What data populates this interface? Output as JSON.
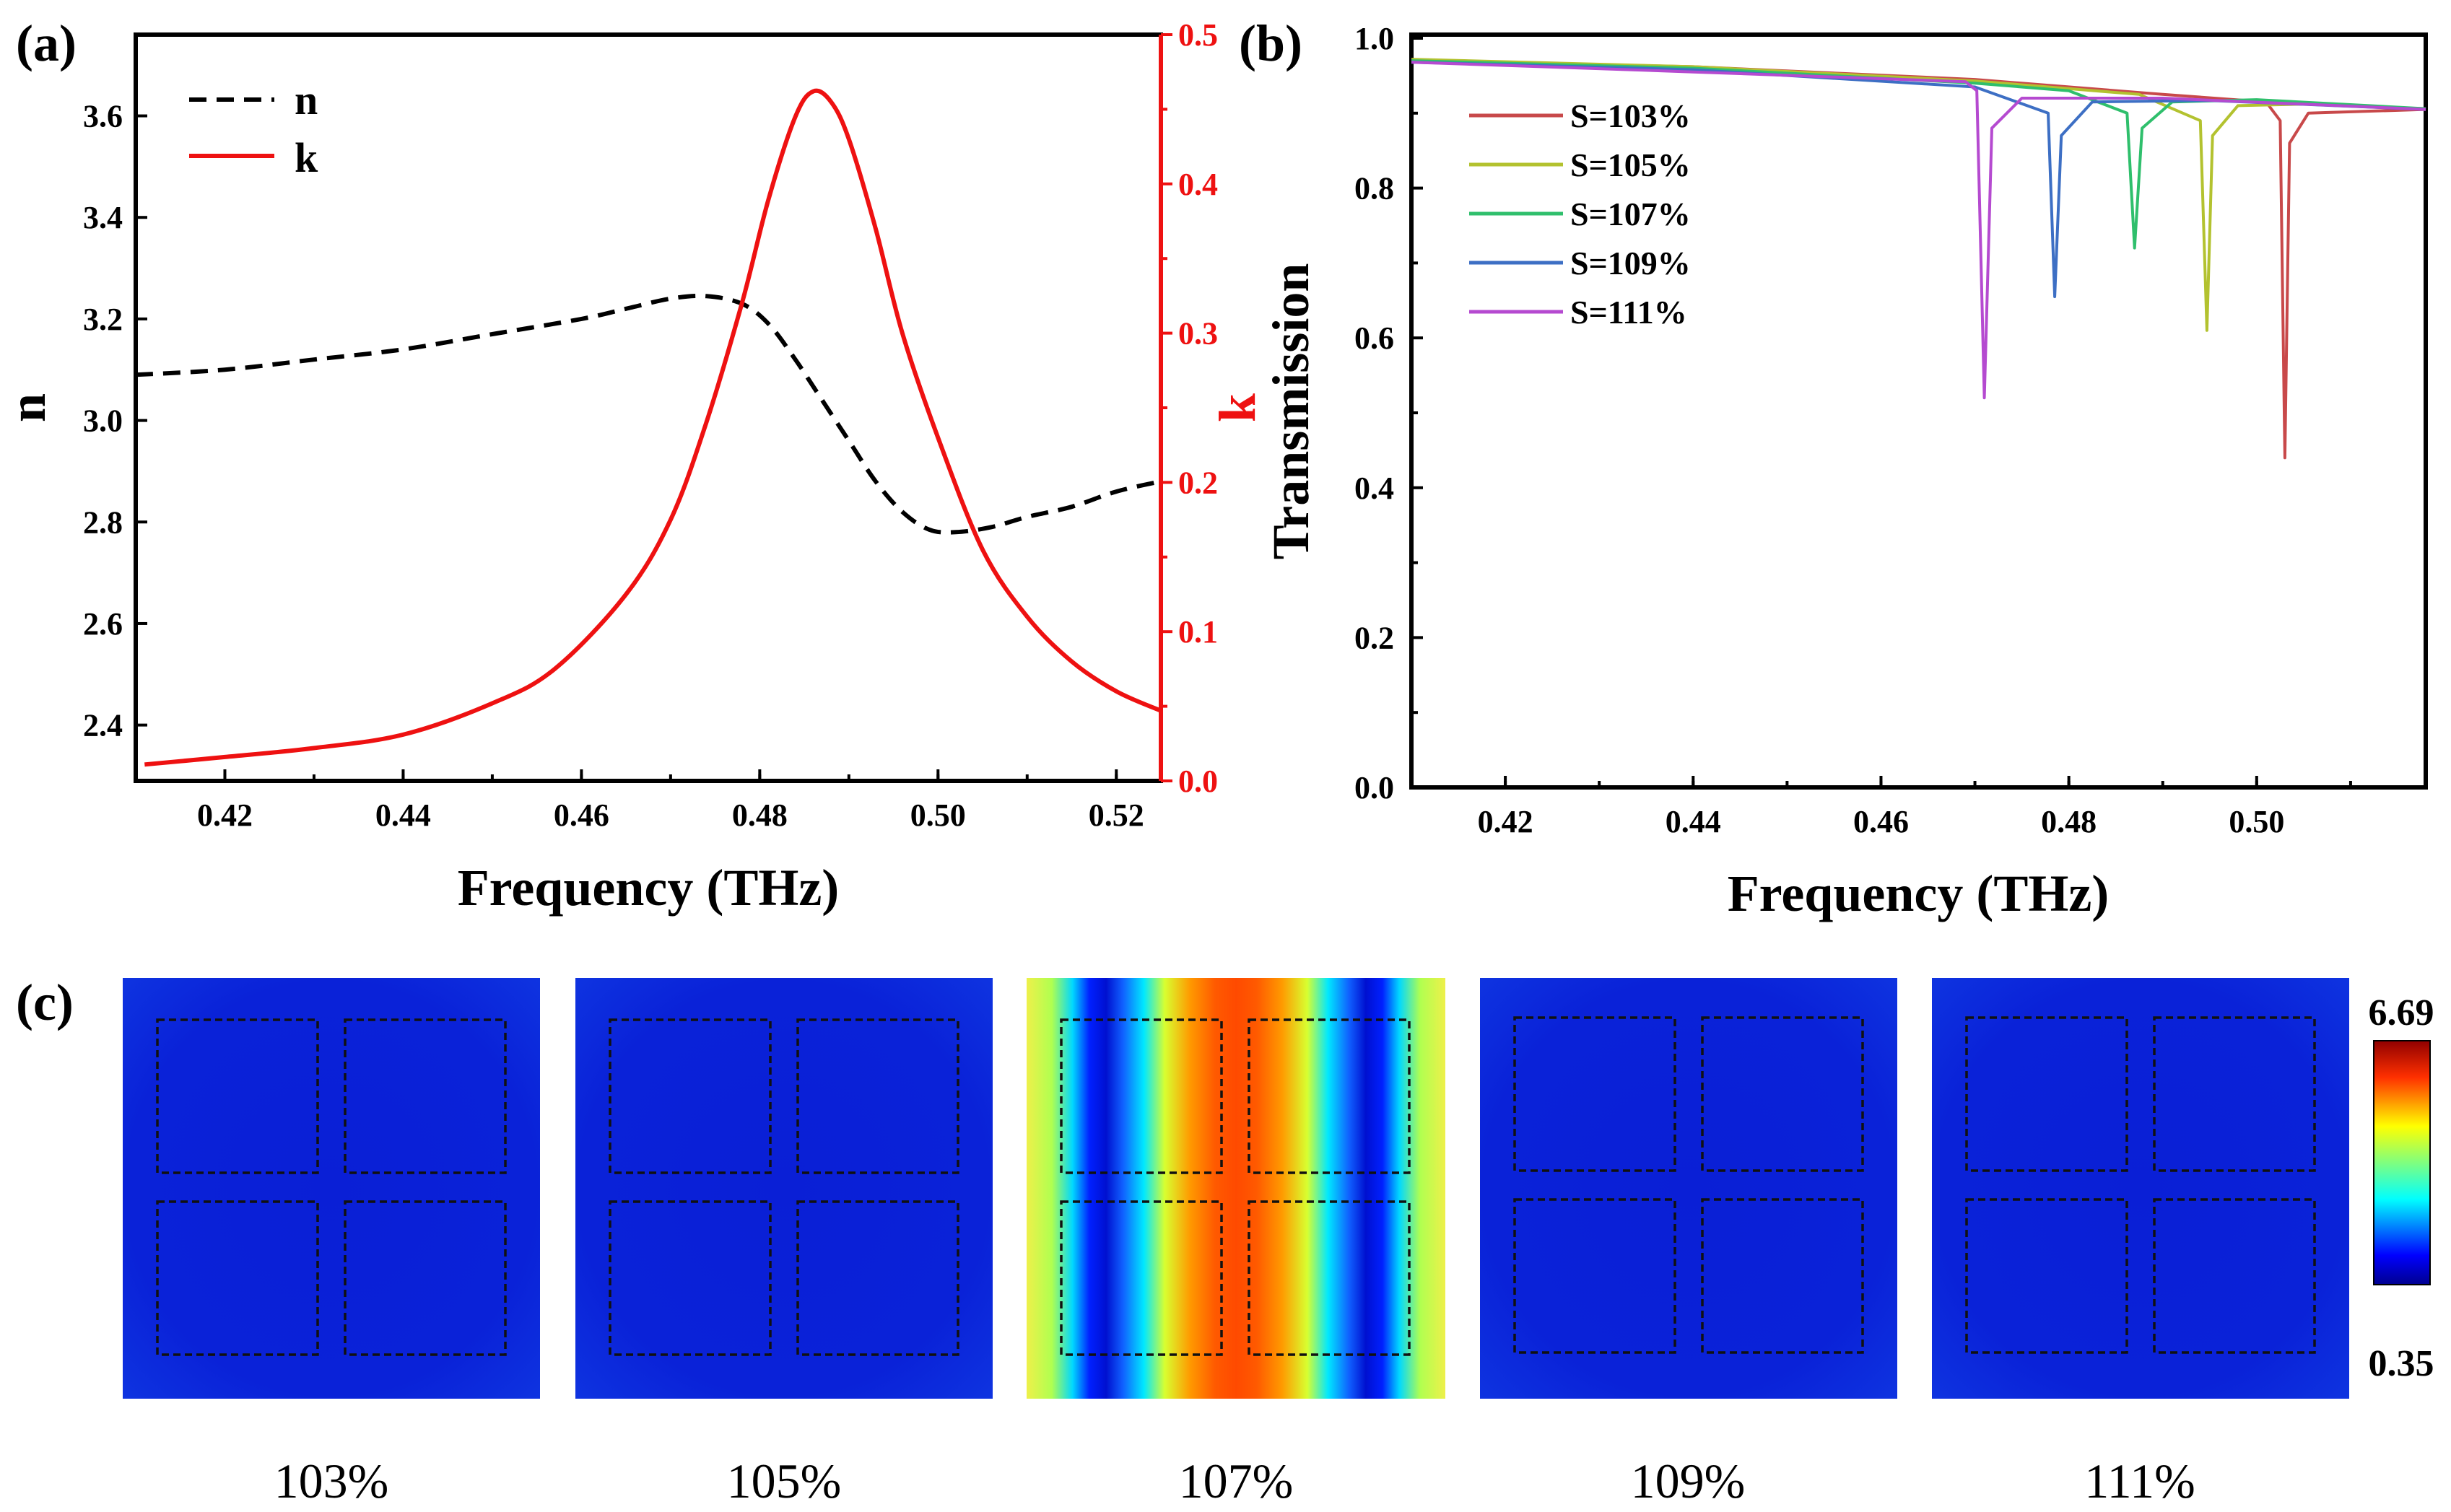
{
  "chart_data": [
    {
      "id": "a",
      "type": "line",
      "panel_label": "(a)",
      "xlabel": "Frequency (THz)",
      "ylabel_left": "n",
      "ylabel_right": "k",
      "xlim": [
        0.41,
        0.525
      ],
      "ylim_left": [
        2.29,
        3.76
      ],
      "ylim_right": [
        0.0,
        0.5
      ],
      "x_ticks": [
        "0.42",
        "0.44",
        "0.46",
        "0.48",
        "0.50",
        "0.52"
      ],
      "y_ticks_left": [
        "2.4",
        "2.6",
        "2.8",
        "3.0",
        "3.2",
        "3.4",
        "3.6"
      ],
      "y_ticks_right": [
        "0.0",
        "0.1",
        "0.2",
        "0.3",
        "0.4",
        "0.5"
      ],
      "legend": [
        "n",
        "k"
      ],
      "colors": {
        "n": "#000000",
        "k": "#ee1111",
        "right_axis": "#ee1111"
      },
      "series": [
        {
          "name": "n",
          "axis": "left",
          "x": [
            0.41,
            0.42,
            0.43,
            0.44,
            0.45,
            0.46,
            0.465,
            0.47,
            0.474,
            0.478,
            0.481,
            0.484,
            0.487,
            0.49,
            0.493,
            0.496,
            0.499,
            0.502,
            0.506,
            0.51,
            0.515,
            0.52,
            0.525
          ],
          "values": [
            3.09,
            3.1,
            3.12,
            3.14,
            3.17,
            3.2,
            3.22,
            3.24,
            3.245,
            3.23,
            3.19,
            3.12,
            3.04,
            2.96,
            2.88,
            2.82,
            2.785,
            2.78,
            2.79,
            2.81,
            2.83,
            2.86,
            2.88
          ]
        },
        {
          "name": "k",
          "axis": "right",
          "x": [
            0.411,
            0.42,
            0.43,
            0.44,
            0.45,
            0.457,
            0.465,
            0.47,
            0.474,
            0.478,
            0.481,
            0.484,
            0.486,
            0.488,
            0.49,
            0.493,
            0.496,
            0.5,
            0.505,
            0.51,
            0.515,
            0.52,
            0.525
          ],
          "values": [
            0.011,
            0.016,
            0.022,
            0.031,
            0.052,
            0.075,
            0.125,
            0.175,
            0.24,
            0.32,
            0.39,
            0.445,
            0.462,
            0.455,
            0.43,
            0.37,
            0.3,
            0.23,
            0.155,
            0.11,
            0.08,
            0.06,
            0.047
          ]
        }
      ]
    },
    {
      "id": "b",
      "type": "line",
      "panel_label": "(b)",
      "xlabel": "Frequency (THz)",
      "ylabel": "Transmission",
      "xlim": [
        0.41,
        0.518
      ],
      "ylim": [
        0.0,
        1.0
      ],
      "x_ticks": [
        "0.42",
        "0.44",
        "0.46",
        "0.48",
        "0.50"
      ],
      "y_ticks": [
        "0.0",
        "0.2",
        "0.4",
        "0.6",
        "0.8",
        "1.0"
      ],
      "series": [
        {
          "name": "S=103%",
          "color": "#c8494a",
          "dip_x": 0.503,
          "dip_min": 0.44,
          "x": [
            0.41,
            0.44,
            0.47,
            0.49,
            0.501,
            0.5025,
            0.503,
            0.5035,
            0.5055,
            0.518
          ],
          "values": [
            0.97,
            0.962,
            0.945,
            0.925,
            0.915,
            0.89,
            0.44,
            0.86,
            0.9,
            0.905
          ]
        },
        {
          "name": "S=105%",
          "color": "#b3c22f",
          "dip_x": 0.4947,
          "dip_min": 0.61,
          "x": [
            0.41,
            0.44,
            0.47,
            0.4875,
            0.494,
            0.4947,
            0.4953,
            0.498,
            0.505,
            0.518
          ],
          "values": [
            0.972,
            0.962,
            0.943,
            0.925,
            0.89,
            0.61,
            0.87,
            0.91,
            0.912,
            0.906
          ]
        },
        {
          "name": "S=107%",
          "color": "#2fbf6c",
          "dip_x": 0.487,
          "dip_min": 0.72,
          "x": [
            0.41,
            0.44,
            0.47,
            0.48,
            0.4862,
            0.487,
            0.4878,
            0.491,
            0.5,
            0.518
          ],
          "values": [
            0.97,
            0.96,
            0.94,
            0.93,
            0.9,
            0.72,
            0.88,
            0.915,
            0.918,
            0.906
          ]
        },
        {
          "name": "S=109%",
          "color": "#3d6fc4",
          "dip_x": 0.4785,
          "dip_min": 0.655,
          "x": [
            0.41,
            0.44,
            0.47,
            0.4778,
            0.4785,
            0.4792,
            0.4825,
            0.495,
            0.518
          ],
          "values": [
            0.968,
            0.958,
            0.935,
            0.9,
            0.655,
            0.87,
            0.915,
            0.917,
            0.905
          ]
        },
        {
          "name": "S=111%",
          "color": "#b54ad0",
          "dip_x": 0.471,
          "dip_min": 0.52,
          "x": [
            0.41,
            0.44,
            0.469,
            0.4702,
            0.471,
            0.4718,
            0.475,
            0.49,
            0.518
          ],
          "values": [
            0.968,
            0.955,
            0.942,
            0.93,
            0.52,
            0.88,
            0.92,
            0.92,
            0.905
          ]
        }
      ]
    },
    {
      "id": "c",
      "type": "heatmap",
      "panel_label": "(c)",
      "colorbar": {
        "max_label": "6.69",
        "min_label": "0.35"
      },
      "maps": [
        {
          "caption": "103%",
          "field": "low"
        },
        {
          "caption": "105%",
          "field": "low"
        },
        {
          "caption": "107%",
          "field": "resonant"
        },
        {
          "caption": "109%",
          "field": "low"
        },
        {
          "caption": "111%",
          "field": "low"
        }
      ]
    }
  ]
}
